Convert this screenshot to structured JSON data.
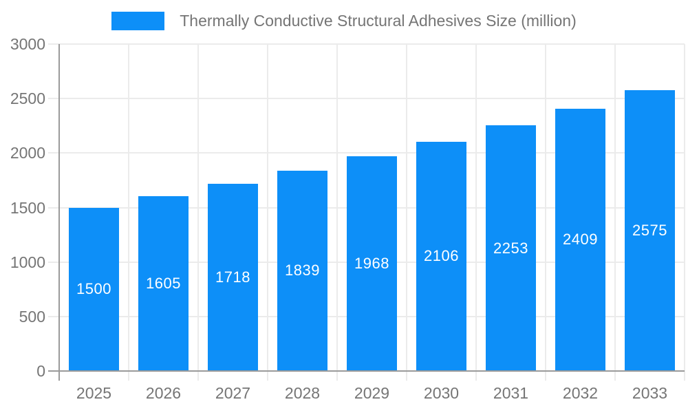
{
  "chart_data": {
    "type": "bar",
    "title": "Thermally Conductive Structural Adhesives Size (million)",
    "categories": [
      "2025",
      "2026",
      "2027",
      "2028",
      "2029",
      "2030",
      "2031",
      "2032",
      "2033"
    ],
    "values": [
      1500,
      1605,
      1718,
      1839,
      1968,
      2106,
      2253,
      2409,
      2575
    ],
    "xlabel": "",
    "ylabel": "",
    "ylim": [
      0,
      3000
    ],
    "ytick_step": 500,
    "yticks": [
      3000,
      2500,
      2000,
      1500,
      1000,
      500,
      0
    ],
    "grid": true,
    "legend_position": "top-center",
    "colors": {
      "bar": "#0d8ff8",
      "value_label": "#ffffff",
      "axis_label": "#757575",
      "title": "#757575",
      "gridline": "#ebebeb",
      "axis_line": "#9a9a9a",
      "background": "#ffffff"
    }
  }
}
